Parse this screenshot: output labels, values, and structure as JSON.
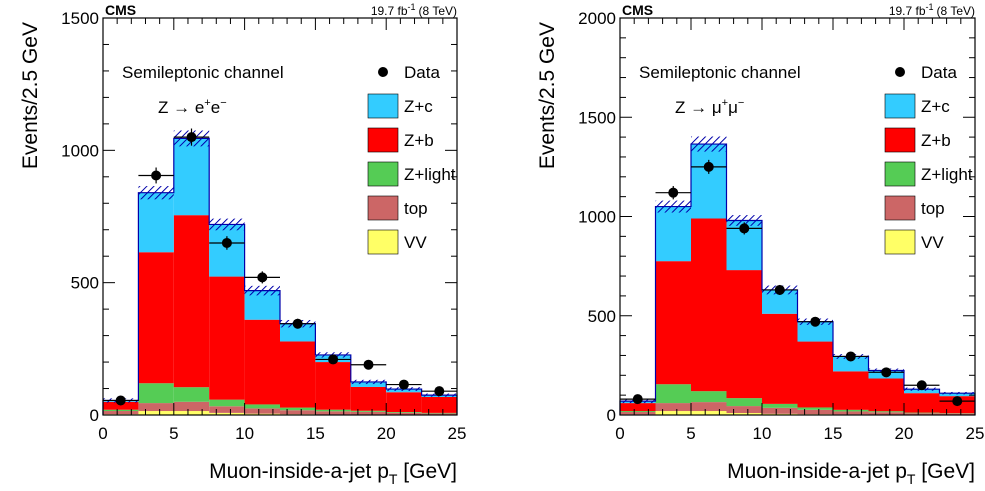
{
  "chart_data": [
    {
      "type": "bar",
      "stacked": true,
      "experiment": "CMS",
      "luminosity": "19.7 fb",
      "luminosity_sup": "-1",
      "energy": "(8 TeV)",
      "channel": "Semileptonic channel",
      "process_prefix": "Z → e",
      "process_sup1": "+",
      "process_mid": "e",
      "process_sup2": "−",
      "xlabel": "Muon-inside-a-jet p",
      "xlabel_sub": "T",
      "xlabel_unit": " [GeV]",
      "ylabel": "Events/2.5 GeV",
      "xlim": [
        0,
        25
      ],
      "ylim": [
        0,
        1500
      ],
      "xticks": [
        "0",
        "5",
        "10",
        "15",
        "20",
        "25"
      ],
      "xtick_values": [
        0,
        5,
        10,
        15,
        20,
        25
      ],
      "yticks": [
        "0",
        "500",
        "1000",
        "1500"
      ],
      "ytick_values": [
        0,
        500,
        1000,
        1500
      ],
      "bin_edges": [
        0,
        2.5,
        5,
        7.5,
        10,
        12.5,
        15,
        17.5,
        20,
        22.5,
        25
      ],
      "colors": {
        "VV": "#ffff66",
        "top": "#cc6666",
        "Z+light": "#55cc55",
        "Z+b": "#ff0000",
        "Z+c": "#33ccff",
        "outline": "#0000aa",
        "uncertainty": "#0000aa"
      },
      "series": [
        {
          "name": "VV",
          "values": [
            3,
            15,
            15,
            8,
            5,
            3,
            2,
            2,
            1,
            1
          ]
        },
        {
          "name": "top",
          "values": [
            12,
            30,
            35,
            25,
            20,
            15,
            12,
            10,
            7,
            5
          ]
        },
        {
          "name": "Z+light",
          "values": [
            5,
            75,
            55,
            25,
            15,
            10,
            6,
            4,
            3,
            2
          ]
        },
        {
          "name": "Z+b",
          "values": [
            30,
            495,
            650,
            465,
            320,
            250,
            180,
            90,
            75,
            60
          ]
        },
        {
          "name": "Z+c",
          "values": [
            5,
            225,
            290,
            197,
            110,
            67,
            27,
            19,
            12,
            7
          ]
        }
      ],
      "uncertainty": [
        8,
        25,
        30,
        22,
        18,
        14,
        10,
        8,
        7,
        6
      ],
      "data_points": {
        "name": "Data",
        "x": [
          1.25,
          3.75,
          6.25,
          8.75,
          11.25,
          13.75,
          16.25,
          18.75,
          21.25,
          23.75
        ],
        "y": [
          55,
          905,
          1050,
          650,
          520,
          345,
          210,
          190,
          115,
          90
        ]
      },
      "legend": [
        "Data",
        "Z+c",
        "Z+b",
        "Z+light",
        "top",
        "VV"
      ]
    },
    {
      "type": "bar",
      "stacked": true,
      "experiment": "CMS",
      "luminosity": "19.7 fb",
      "luminosity_sup": "-1",
      "energy": "(8 TeV)",
      "channel": "Semileptonic channel",
      "process_prefix": "Z → μ",
      "process_sup1": "+",
      "process_mid": "μ",
      "process_sup2": "−",
      "xlabel": "Muon-inside-a-jet p",
      "xlabel_sub": "T",
      "xlabel_unit": " [GeV]",
      "ylabel": "Events/2.5 GeV",
      "xlim": [
        0,
        25
      ],
      "ylim": [
        0,
        2000
      ],
      "xticks": [
        "0",
        "5",
        "10",
        "15",
        "20",
        "25"
      ],
      "xtick_values": [
        0,
        5,
        10,
        15,
        20,
        25
      ],
      "yticks": [
        "0",
        "500",
        "1000",
        "1500",
        "2000"
      ],
      "ytick_values": [
        0,
        500,
        1000,
        1500,
        2000
      ],
      "bin_edges": [
        0,
        2.5,
        5,
        7.5,
        10,
        12.5,
        15,
        17.5,
        20,
        22.5,
        25
      ],
      "colors": {
        "VV": "#ffff66",
        "top": "#cc6666",
        "Z+light": "#55cc55",
        "Z+b": "#ff0000",
        "Z+c": "#33ccff",
        "outline": "#0000aa",
        "uncertainty": "#0000aa"
      },
      "series": [
        {
          "name": "VV",
          "values": [
            3,
            20,
            20,
            10,
            6,
            4,
            3,
            2,
            1,
            1
          ]
        },
        {
          "name": "top",
          "values": [
            12,
            40,
            45,
            35,
            30,
            22,
            15,
            12,
            8,
            6
          ]
        },
        {
          "name": "Z+light",
          "values": [
            5,
            95,
            55,
            40,
            20,
            12,
            8,
            5,
            3,
            2
          ]
        },
        {
          "name": "Z+b",
          "values": [
            40,
            620,
            870,
            645,
            454,
            332,
            194,
            165,
            98,
            86
          ]
        },
        {
          "name": "Z+c",
          "values": [
            10,
            275,
            375,
            250,
            120,
            100,
            75,
            40,
            20,
            15
          ]
        }
      ],
      "uncertainty": [
        10,
        30,
        38,
        27,
        22,
        16,
        12,
        10,
        8,
        6
      ],
      "data_points": {
        "name": "Data",
        "x": [
          1.25,
          3.75,
          6.25,
          8.75,
          11.25,
          13.75,
          16.25,
          18.75,
          21.25,
          23.75
        ],
        "y": [
          80,
          1120,
          1250,
          940,
          630,
          470,
          295,
          215,
          150,
          70
        ]
      },
      "legend": [
        "Data",
        "Z+c",
        "Z+b",
        "Z+light",
        "top",
        "VV"
      ]
    }
  ]
}
